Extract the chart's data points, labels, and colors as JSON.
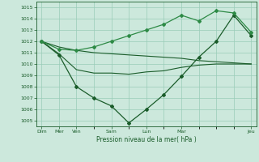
{
  "background_color": "#cce8dc",
  "grid_color": "#99ccb8",
  "line_color_dark": "#1a5c2a",
  "line_color_mid": "#2d8a45",
  "ylim": [
    1004.5,
    1015.5
  ],
  "yticks": [
    1005,
    1006,
    1007,
    1008,
    1009,
    1010,
    1011,
    1012,
    1013,
    1014,
    1015
  ],
  "xlabel": "Pression niveau de la mer( hPa )",
  "major_xtick_positions": [
    0,
    1,
    2,
    4,
    6,
    8,
    12
  ],
  "major_xtick_labels": [
    "Dim",
    "Mer",
    "Ven",
    "Sam",
    "Lun",
    "Mar",
    "Jeu"
  ],
  "series_flat_x": [
    0,
    1,
    2,
    3,
    4,
    5,
    6,
    7,
    8,
    9,
    10,
    11,
    12
  ],
  "series_flat_y": [
    1012.0,
    1011.5,
    1011.2,
    1011.0,
    1010.9,
    1010.8,
    1010.7,
    1010.6,
    1010.5,
    1010.3,
    1010.2,
    1010.1,
    1010.0
  ],
  "series_low_x": [
    0,
    1,
    2,
    3,
    4,
    5,
    6,
    7,
    8,
    9,
    10,
    11,
    12
  ],
  "series_low_y": [
    1012.0,
    1010.9,
    1009.5,
    1009.2,
    1009.2,
    1009.1,
    1009.3,
    1009.4,
    1009.7,
    1009.9,
    1010.0,
    1010.0,
    1010.0
  ],
  "series_deep_x": [
    0,
    1,
    2,
    3,
    4,
    5,
    6,
    7,
    8,
    9,
    10,
    11,
    12
  ],
  "series_deep_y": [
    1012.0,
    1010.8,
    1008.0,
    1007.0,
    1006.3,
    1004.8,
    1006.0,
    1007.3,
    1008.9,
    1010.6,
    1012.0,
    1014.3,
    1012.5
  ],
  "series_high_x": [
    0,
    1,
    2,
    3,
    4,
    5,
    6,
    7,
    8,
    9,
    10,
    11,
    12
  ],
  "series_high_y": [
    1012.0,
    1011.3,
    1011.2,
    1011.5,
    1012.0,
    1012.5,
    1013.0,
    1013.5,
    1014.3,
    1013.8,
    1014.7,
    1014.5,
    1012.8
  ]
}
